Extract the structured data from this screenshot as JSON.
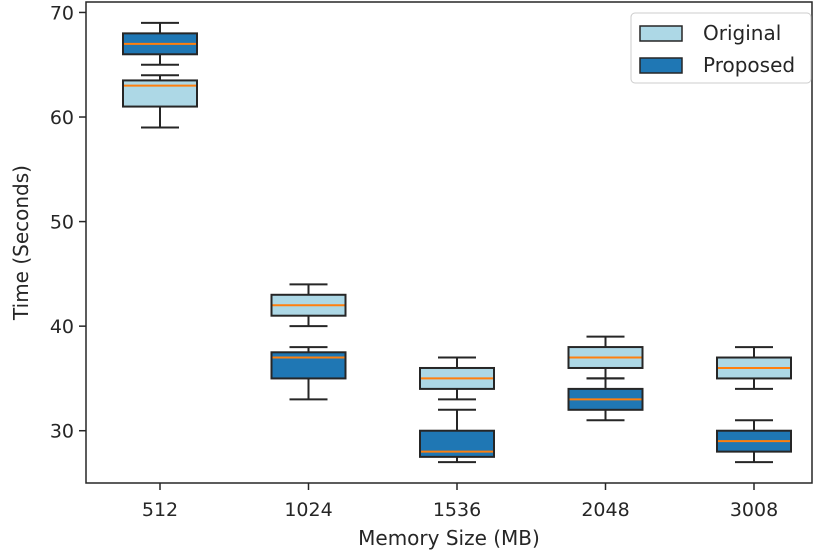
{
  "chart_data": {
    "type": "box",
    "title": "",
    "xlabel": "Memory Size (MB)",
    "ylabel": "Time (Seconds)",
    "categories": [
      "512",
      "1024",
      "1536",
      "2048",
      "3008"
    ],
    "ylim": [
      25,
      71
    ],
    "yticks": [
      30,
      40,
      50,
      60,
      70
    ],
    "grid": false,
    "legend_position": "top-right",
    "series": [
      {
        "name": "Original",
        "color": "#add8e6",
        "boxes": [
          {
            "whisker_low": 59,
            "q1": 61,
            "median": 63,
            "q3": 63.5,
            "whisker_high": 64
          },
          {
            "whisker_low": 40,
            "q1": 41,
            "median": 42,
            "q3": 43,
            "whisker_high": 44
          },
          {
            "whisker_low": 33,
            "q1": 34,
            "median": 35,
            "q3": 36,
            "whisker_high": 37
          },
          {
            "whisker_low": 35,
            "q1": 36,
            "median": 37,
            "q3": 38,
            "whisker_high": 39
          },
          {
            "whisker_low": 34,
            "q1": 35,
            "median": 36,
            "q3": 37,
            "whisker_high": 38
          }
        ]
      },
      {
        "name": "Proposed",
        "color": "#1f77b4",
        "boxes": [
          {
            "whisker_low": 65,
            "q1": 66,
            "median": 67,
            "q3": 68,
            "whisker_high": 69
          },
          {
            "whisker_low": 33,
            "q1": 35,
            "median": 37,
            "q3": 37.5,
            "whisker_high": 38
          },
          {
            "whisker_low": 27,
            "q1": 27.5,
            "median": 28,
            "q3": 30,
            "whisker_high": 32
          },
          {
            "whisker_low": 31,
            "q1": 32,
            "median": 33,
            "q3": 34,
            "whisker_high": 35
          },
          {
            "whisker_low": 27,
            "q1": 28,
            "median": 29,
            "q3": 30,
            "whisker_high": 31
          }
        ]
      }
    ],
    "median_color": "#ff7f0e"
  }
}
